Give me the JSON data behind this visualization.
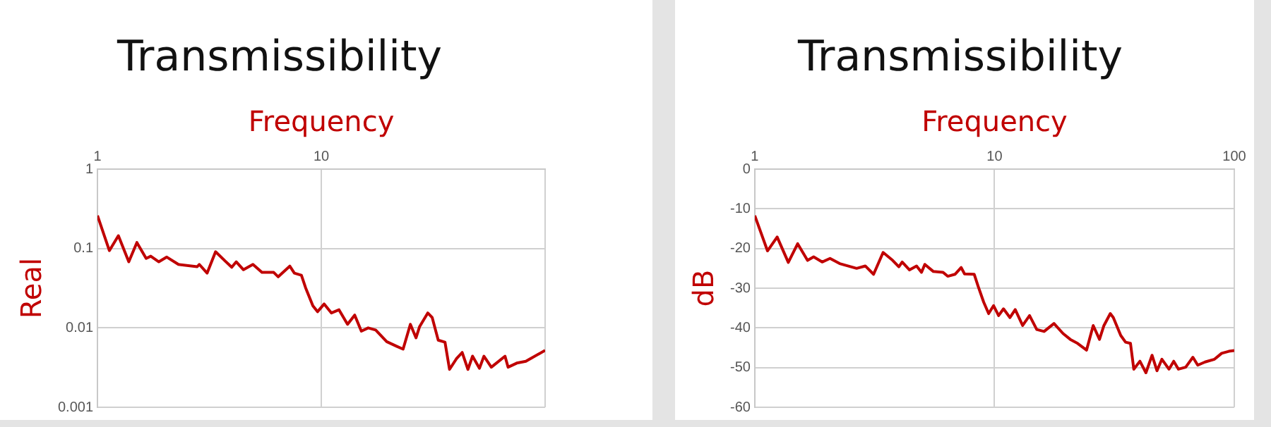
{
  "chart_data": [
    {
      "type": "line",
      "title": "Transmissibility",
      "xlabel": "Frequency",
      "ylabel": "Real",
      "log": "xy",
      "grid": true,
      "xlim": [
        1,
        100
      ],
      "xticks": [
        1,
        10,
        {
          "value": 100,
          "label": null
        }
      ],
      "ylim": [
        0.001,
        1
      ],
      "yticks": [
        0.001,
        0.01,
        0.1,
        1
      ],
      "x": [
        1,
        1.13,
        1.24,
        1.38,
        1.5,
        1.65,
        1.73,
        1.88,
        2.04,
        2.3,
        2.79,
        2.85,
        3.09,
        3.37,
        3.71,
        3.98,
        4.17,
        4.49,
        4.95,
        5.43,
        6.13,
        6.42,
        7.23,
        7.58,
        8.15,
        8.51,
        9.17,
        9.62,
        10.3,
        11.1,
        12,
        13.1,
        14.1,
        15.1,
        16.2,
        17.5,
        19.6,
        21.6,
        23.2,
        25,
        26.5,
        27.5,
        29.9,
        31.3,
        33.3,
        35.7,
        37.4,
        40.2,
        42.6,
        45.2,
        47.4,
        50.9,
        53.3,
        57.5,
        66.2,
        68.3,
        74.7,
        82,
        100
      ],
      "series": [
        {
          "color": "#c00000",
          "values": [
            0.26,
            0.094,
            0.145,
            0.068,
            0.119,
            0.075,
            0.08,
            0.068,
            0.078,
            0.063,
            0.059,
            0.063,
            0.049,
            0.091,
            0.07,
            0.058,
            0.068,
            0.054,
            0.063,
            0.05,
            0.05,
            0.044,
            0.06,
            0.049,
            0.046,
            0.032,
            0.019,
            0.016,
            0.02,
            0.0154,
            0.0169,
            0.0111,
            0.0145,
            0.0091,
            0.01,
            0.0094,
            0.0067,
            0.0059,
            0.0054,
            0.0111,
            0.0075,
            0.0104,
            0.0154,
            0.0135,
            0.007,
            0.0066,
            0.003,
            0.0041,
            0.0049,
            0.003,
            0.0044,
            0.0031,
            0.0044,
            0.0032,
            0.0044,
            0.0032,
            0.0036,
            0.0038,
            0.0052
          ]
        }
      ]
    },
    {
      "type": "line",
      "title": "Transmissibility",
      "xlabel": "Frequency",
      "ylabel": "dB",
      "log": "x",
      "grid": true,
      "xlim": [
        1,
        100
      ],
      "xticks": [
        1,
        10,
        100
      ],
      "ylim": [
        -60,
        0
      ],
      "yticks": [
        -60,
        -50,
        -40,
        -30,
        -20,
        -10,
        0
      ],
      "x": [
        1,
        1.13,
        1.24,
        1.38,
        1.51,
        1.66,
        1.76,
        1.91,
        2.06,
        2.26,
        2.66,
        2.89,
        3.13,
        3.43,
        3.76,
        3.99,
        4.12,
        4.42,
        4.73,
        4.96,
        5.12,
        5.56,
        6.1,
        6.38,
        6.84,
        7.26,
        7.5,
        8.23,
        8.54,
        9.01,
        9.45,
        9.91,
        10.4,
        10.9,
        11.6,
        12.2,
        13.1,
        14,
        15,
        16.1,
        17.7,
        19.3,
        20.7,
        22.2,
        24.2,
        25.8,
        27.4,
        28.6,
        30.4,
        31.3,
        33.6,
        35.2,
        36.9,
        38.1,
        40.4,
        42.8,
        45.4,
        47.6,
        49.9,
        53.4,
        55.9,
        58.5,
        62.7,
        67.2,
        70.4,
        75.5,
        82.7,
        88.6,
        94.9,
        100
      ],
      "series": [
        {
          "color": "#c00000",
          "values": [
            -11.7,
            -20.6,
            -17.1,
            -23.5,
            -18.8,
            -23,
            -22.1,
            -23.4,
            -22.5,
            -23.8,
            -25,
            -24.4,
            -26.5,
            -21,
            -23,
            -24.6,
            -23.4,
            -25.4,
            -24.4,
            -26,
            -24,
            -25.8,
            -26,
            -27,
            -26.5,
            -24.8,
            -26.4,
            -26.5,
            -29.5,
            -33.5,
            -36.4,
            -34.4,
            -36.9,
            -35.2,
            -37.4,
            -35.4,
            -39.4,
            -36.9,
            -40.4,
            -40.9,
            -38.9,
            -41.4,
            -42.9,
            -43.9,
            -45.6,
            -39.4,
            -42.9,
            -39.4,
            -36.4,
            -37.4,
            -41.9,
            -43.6,
            -43.9,
            -50.4,
            -48.4,
            -51.3,
            -46.9,
            -50.8,
            -47.9,
            -50.4,
            -48.4,
            -50.4,
            -49.9,
            -47.4,
            -49.4,
            -48.6,
            -47.9,
            -46.4,
            -45.9,
            -45.7
          ]
        }
      ]
    }
  ]
}
